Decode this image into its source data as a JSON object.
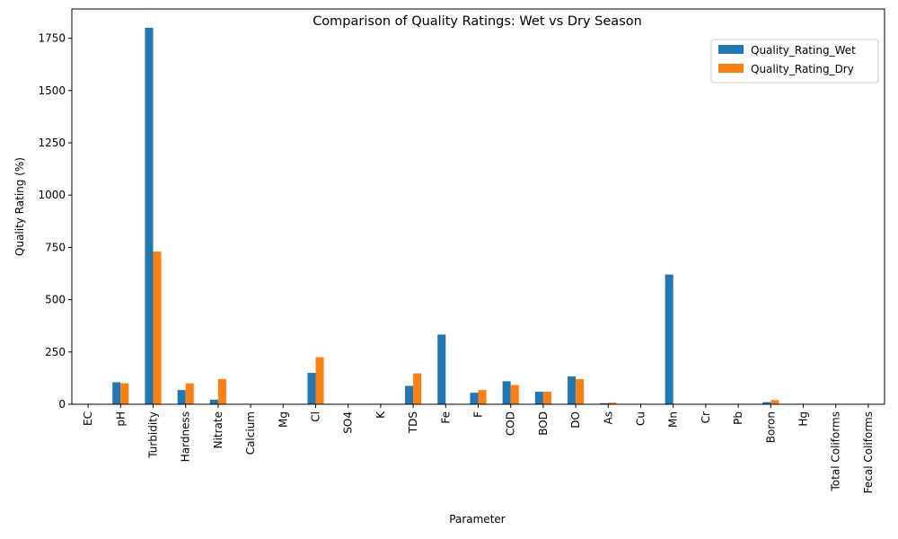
{
  "chart_data": {
    "type": "bar",
    "title": "Comparison of Quality Ratings: Wet vs Dry Season",
    "xlabel": "Parameter",
    "ylabel": "Quality Rating (%)",
    "ylim": [
      0,
      1890
    ],
    "yticks": [
      0,
      250,
      500,
      750,
      1000,
      1250,
      1500,
      1750
    ],
    "grid": false,
    "legend_position": "top-right",
    "categories": [
      "EC",
      "pH",
      "Turbidity",
      "Hardness",
      "Nitrate",
      "Calcium",
      "Mg",
      "Cl",
      "SO4",
      "K",
      "TDS",
      "Fe",
      "F",
      "COD",
      "BOD",
      "DO",
      "As",
      "Cu",
      "Mn",
      "Cr",
      "Pb",
      "Boron",
      "Hg",
      "Total Coliforms",
      "Fecal Coliforms"
    ],
    "series": [
      {
        "name": "Quality_Rating_Wet",
        "color": "#1f77b4",
        "values": [
          0,
          105,
          1800,
          68,
          22,
          0,
          0,
          150,
          0,
          0,
          88,
          333,
          55,
          110,
          60,
          133,
          5,
          0,
          620,
          0,
          0,
          10,
          0,
          0,
          0
        ]
      },
      {
        "name": "Quality_Rating_Dry",
        "color": "#ff7f0e",
        "values": [
          0,
          100,
          730,
          100,
          120,
          0,
          0,
          225,
          0,
          0,
          148,
          0,
          68,
          92,
          60,
          120,
          8,
          0,
          0,
          0,
          0,
          20,
          0,
          0,
          0
        ]
      }
    ]
  }
}
